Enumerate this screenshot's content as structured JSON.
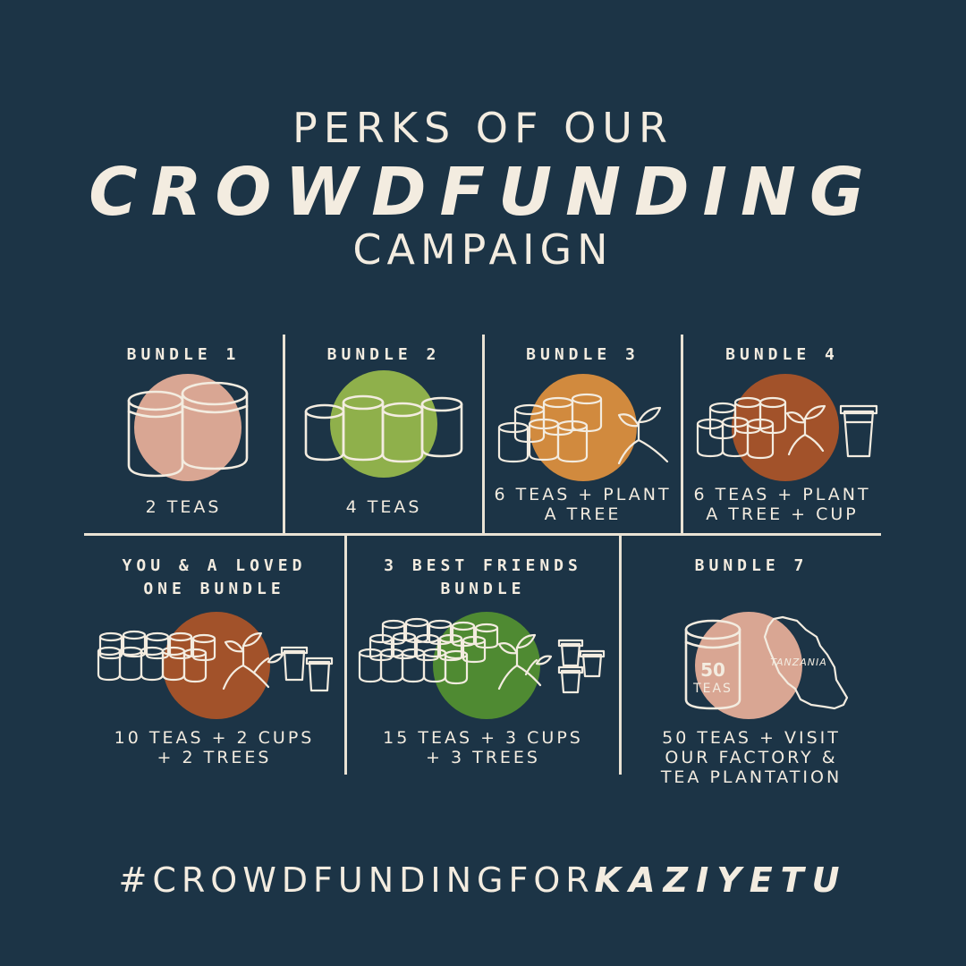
{
  "header": {
    "line1": "PERKS OF OUR",
    "line2": "CROWDFUNDING",
    "line3": "CAMPAIGN"
  },
  "bundles": [
    {
      "name": "BUNDLE 1",
      "desc": "2 TEAS",
      "circle": "#d9a693"
    },
    {
      "name": "BUNDLE 2",
      "desc": "4 TEAS",
      "circle": "#8fb04b"
    },
    {
      "name": "BUNDLE 3",
      "desc": "6 TEAS + PLANT\nA TREE",
      "circle": "#d18a3e"
    },
    {
      "name": "BUNDLE 4",
      "desc": "6 TEAS + PLANT\nA TREE + CUP",
      "circle": "#a2522a"
    },
    {
      "name": "YOU & A LOVED\nONE BUNDLE",
      "desc": "10 TEAS + 2 CUPS\n+ 2 TREES",
      "circle": "#a2522a"
    },
    {
      "name": "3 BEST FRIENDS\nBUNDLE",
      "desc": "15 TEAS + 3 CUPS\n+ 3 TREES",
      "circle": "#4f8a32"
    },
    {
      "name": "BUNDLE 7",
      "desc": "50 TEAS + VISIT\nOUR FACTORY &\nTEA PLANTATION",
      "circle": "#d9a693"
    }
  ],
  "bundle7_art": {
    "tin_label_1": "50",
    "tin_label_2": "TEAS",
    "map_label": "TANZANIA"
  },
  "hashtag": {
    "part1": "#CROWDFUNDINGFOR",
    "part2": "KAZIYETU"
  }
}
